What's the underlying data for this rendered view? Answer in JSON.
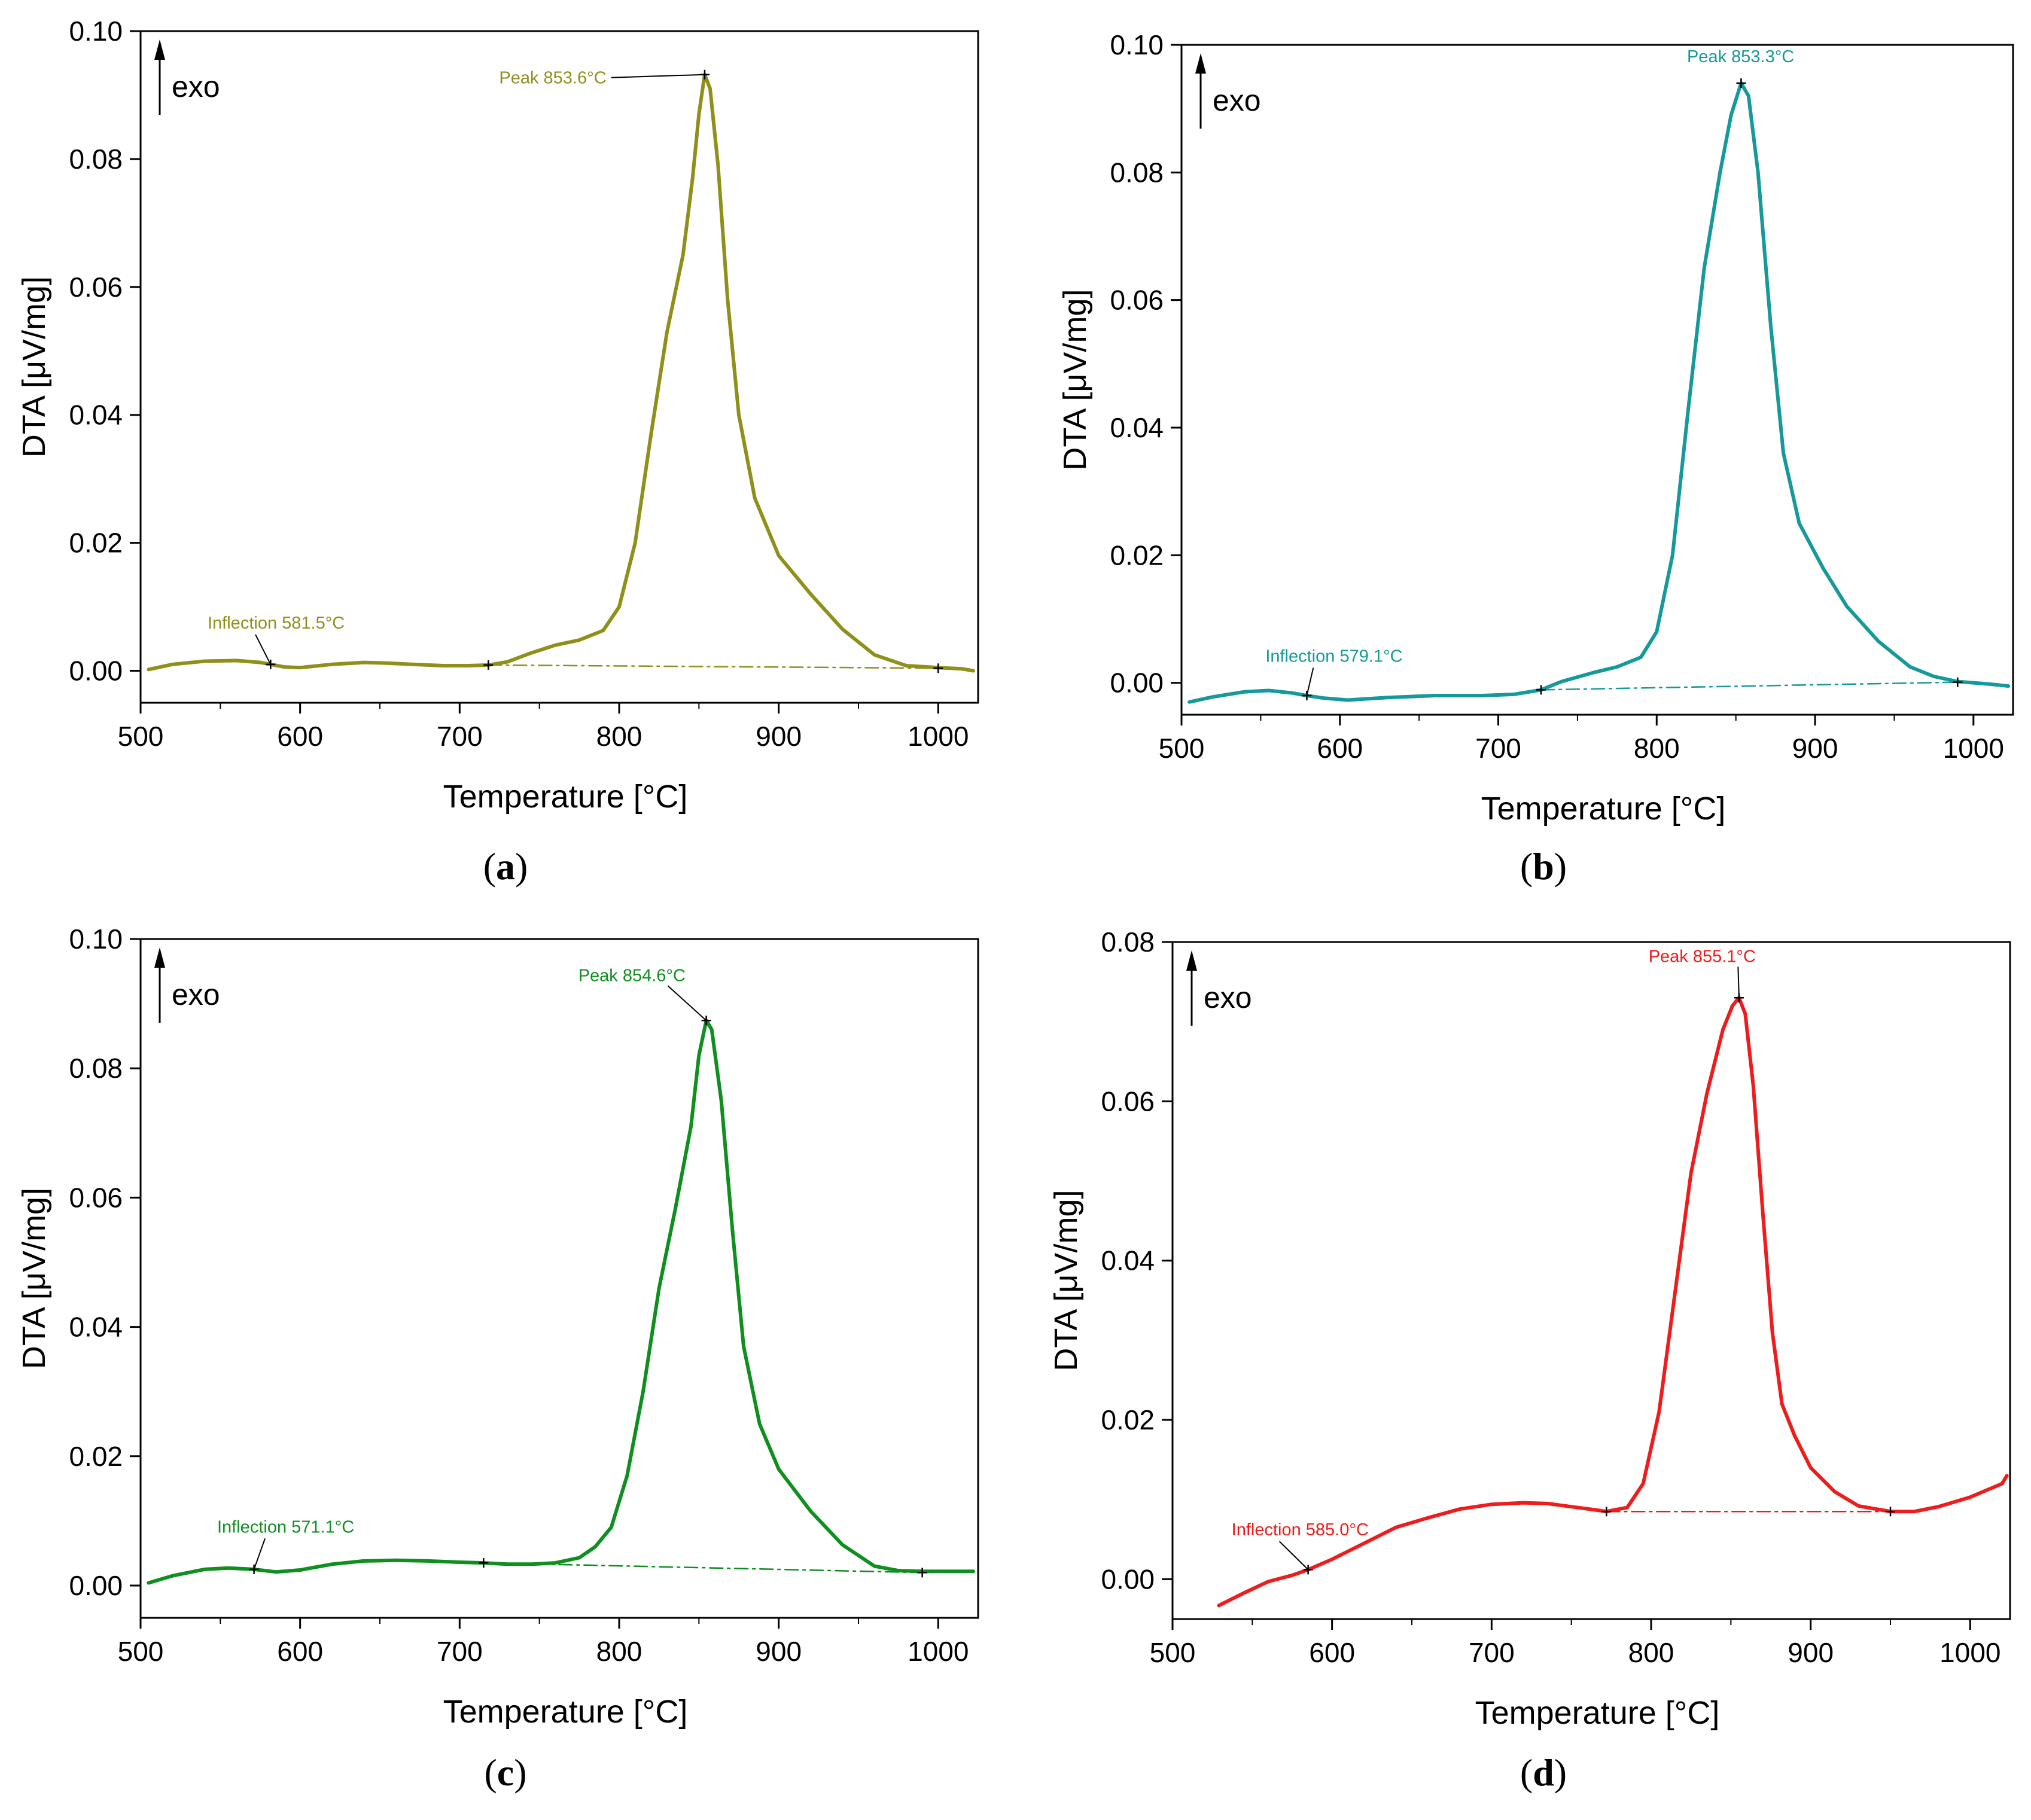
{
  "chart_data": [
    {
      "type": "line",
      "panel_label": "a",
      "color": "#8f8f1a",
      "xlabel": "Temperature [°C]",
      "ylabel": "DTA [μV/mg]",
      "xlim": [
        500,
        1025
      ],
      "ylim": [
        -0.005,
        0.1
      ],
      "xticks": [
        500,
        600,
        700,
        800,
        900,
        1000
      ],
      "yticks": [
        "0.00",
        "0.02",
        "0.04",
        "0.06",
        "0.08",
        "0.10"
      ],
      "exo_label": "exo",
      "series": [
        {
          "name": "DTA",
          "x": [
            505,
            520,
            540,
            560,
            575,
            581.5,
            590,
            600,
            620,
            640,
            655,
            670,
            690,
            705,
            718,
            730,
            745,
            760,
            775,
            790,
            800,
            810,
            820,
            830,
            840,
            846,
            850,
            853.6,
            857,
            862,
            868,
            875,
            885,
            900,
            920,
            940,
            960,
            980,
            1000,
            1015,
            1022
          ],
          "y": [
            0.0002,
            0.001,
            0.0015,
            0.0016,
            0.0013,
            0.001,
            0.0006,
            0.0005,
            0.001,
            0.0013,
            0.0012,
            0.001,
            0.0008,
            0.0008,
            0.0009,
            0.0014,
            0.0028,
            0.004,
            0.0048,
            0.0063,
            0.01,
            0.02,
            0.037,
            0.053,
            0.065,
            0.077,
            0.087,
            0.0932,
            0.091,
            0.079,
            0.058,
            0.04,
            0.027,
            0.018,
            0.012,
            0.0065,
            0.0025,
            0.0008,
            0.0005,
            0.0003,
            0.0
          ]
        },
        {
          "name": "baseline",
          "style": "dash-dot",
          "x": [
            718,
            1000
          ],
          "y": [
            0.0009,
            0.0004
          ]
        }
      ],
      "markers": [
        {
          "x": 581.5,
          "y": 0.001
        },
        {
          "x": 718,
          "y": 0.0009
        },
        {
          "x": 853.6,
          "y": 0.0932
        },
        {
          "x": 1000,
          "y": 0.0004
        }
      ],
      "annotations": [
        {
          "text": "Peak 853.6°C",
          "x": 853.6,
          "y": 0.0932,
          "text_x": 792,
          "text_y": 0.0918,
          "anchor": "end",
          "leader": true
        },
        {
          "text": "Inflection 581.5°C",
          "x": 581.5,
          "y": 0.001,
          "text_x": 542,
          "text_y": 0.0066,
          "anchor": "start",
          "leader": true
        }
      ]
    },
    {
      "type": "line",
      "panel_label": "b",
      "color": "#15999a",
      "xlabel": "Temperature [°C]",
      "ylabel": "DTA [μV/mg]",
      "xlim": [
        500,
        1025
      ],
      "ylim": [
        -0.005,
        0.1
      ],
      "xticks": [
        500,
        600,
        700,
        800,
        900,
        1000
      ],
      "yticks": [
        "0.00",
        "0.02",
        "0.04",
        "0.06",
        "0.08",
        "0.10"
      ],
      "exo_label": "exo",
      "series": [
        {
          "name": "DTA",
          "x": [
            505,
            520,
            540,
            555,
            570,
            579.1,
            590,
            605,
            630,
            660,
            690,
            710,
            727,
            740,
            760,
            775,
            790,
            800,
            810,
            820,
            830,
            840,
            847,
            853.3,
            858,
            864,
            872,
            880,
            890,
            905,
            920,
            940,
            960,
            975,
            990,
            1010,
            1022
          ],
          "y": [
            -0.003,
            -0.0022,
            -0.0014,
            -0.0012,
            -0.0016,
            -0.002,
            -0.0024,
            -0.0027,
            -0.0023,
            -0.002,
            -0.002,
            -0.0018,
            -0.0011,
            0.0002,
            0.0016,
            0.0025,
            0.004,
            0.008,
            0.02,
            0.043,
            0.065,
            0.08,
            0.089,
            0.094,
            0.092,
            0.08,
            0.056,
            0.036,
            0.025,
            0.018,
            0.012,
            0.0065,
            0.0025,
            0.001,
            0.0002,
            -0.0002,
            -0.0005
          ]
        },
        {
          "name": "baseline",
          "style": "dash-dot",
          "x": [
            727,
            990
          ],
          "y": [
            -0.0011,
            0.0001
          ]
        }
      ],
      "markers": [
        {
          "x": 579.1,
          "y": -0.002
        },
        {
          "x": 727,
          "y": -0.0011
        },
        {
          "x": 853.3,
          "y": 0.094
        },
        {
          "x": 990,
          "y": 0.0001
        }
      ],
      "annotations": [
        {
          "text": "Peak 853.3°C",
          "x": 853.3,
          "y": 0.094,
          "text_x": 853,
          "text_y": 0.0973,
          "anchor": "middle",
          "leader": false
        },
        {
          "text": "Inflection 579.1°C",
          "x": 579.1,
          "y": -0.002,
          "text_x": 553,
          "text_y": 0.0033,
          "anchor": "start",
          "leader": true
        }
      ]
    },
    {
      "type": "line",
      "panel_label": "c",
      "color": "#0f8f1f",
      "xlabel": "Temperature [°C]",
      "ylabel": "DTA [μV/mg]",
      "xlim": [
        500,
        1025
      ],
      "ylim": [
        -0.005,
        0.1
      ],
      "xticks": [
        500,
        600,
        700,
        800,
        900,
        1000
      ],
      "yticks": [
        "0.00",
        "0.02",
        "0.04",
        "0.06",
        "0.08",
        "0.10"
      ],
      "exo_label": "exo",
      "series": [
        {
          "name": "DTA",
          "x": [
            505,
            520,
            540,
            555,
            571.1,
            585,
            600,
            620,
            640,
            660,
            680,
            700,
            715,
            730,
            745,
            760,
            775,
            785,
            795,
            805,
            815,
            825,
            835,
            845,
            850,
            854.6,
            858,
            864,
            871,
            878,
            888,
            900,
            920,
            940,
            960,
            975,
            990,
            1005,
            1022
          ],
          "y": [
            0.0004,
            0.0015,
            0.0025,
            0.0027,
            0.0025,
            0.0021,
            0.0024,
            0.0033,
            0.0038,
            0.0039,
            0.0038,
            0.0036,
            0.0035,
            0.0033,
            0.0033,
            0.0035,
            0.0043,
            0.006,
            0.009,
            0.017,
            0.03,
            0.046,
            0.058,
            0.071,
            0.082,
            0.0874,
            0.086,
            0.075,
            0.055,
            0.037,
            0.025,
            0.018,
            0.0115,
            0.0063,
            0.003,
            0.0023,
            0.0022,
            0.0022,
            0.0022
          ]
        },
        {
          "name": "baseline",
          "style": "dash-dot",
          "x": [
            715,
            990
          ],
          "y": [
            0.0035,
            0.002
          ]
        }
      ],
      "markers": [
        {
          "x": 571.1,
          "y": 0.0025
        },
        {
          "x": 715,
          "y": 0.0035
        },
        {
          "x": 854.6,
          "y": 0.0874
        },
        {
          "x": 990,
          "y": 0.002
        }
      ],
      "annotations": [
        {
          "text": "Peak 854.6°C",
          "x": 854.6,
          "y": 0.0874,
          "text_x": 808,
          "text_y": 0.0935,
          "anchor": "middle",
          "leader": true
        },
        {
          "text": "Inflection 571.1°C",
          "x": 571.1,
          "y": 0.0025,
          "text_x": 548,
          "text_y": 0.0082,
          "anchor": "start",
          "leader": true
        }
      ]
    },
    {
      "type": "line",
      "panel_label": "d",
      "color": "#ee1c1c",
      "xlabel": "Temperature [°C]",
      "ylabel": "DTA [μV/mg]",
      "xlim": [
        500,
        1025
      ],
      "ylim": [
        -0.005,
        0.08
      ],
      "xticks": [
        500,
        600,
        700,
        800,
        900,
        1000
      ],
      "yticks": [
        "0.00",
        "0.02",
        "0.04",
        "0.06",
        "0.08"
      ],
      "exo_label": "exo",
      "series": [
        {
          "name": "DTA",
          "x": [
            529,
            545,
            560,
            575,
            585,
            600,
            620,
            640,
            660,
            680,
            700,
            720,
            735,
            750,
            765,
            772,
            785,
            795,
            805,
            815,
            825,
            835,
            845,
            851,
            855.1,
            859,
            864,
            870,
            876,
            882,
            890,
            900,
            915,
            930,
            950,
            965,
            980,
            1000,
            1020,
            1023
          ],
          "y": [
            -0.0033,
            -0.0017,
            -0.0003,
            0.0005,
            0.0012,
            0.0025,
            0.0045,
            0.0065,
            0.0077,
            0.0088,
            0.0094,
            0.0096,
            0.0095,
            0.0091,
            0.0087,
            0.0085,
            0.009,
            0.012,
            0.021,
            0.036,
            0.051,
            0.061,
            0.069,
            0.072,
            0.073,
            0.071,
            0.062,
            0.046,
            0.031,
            0.022,
            0.018,
            0.014,
            0.011,
            0.0092,
            0.0085,
            0.0085,
            0.0091,
            0.0103,
            0.012,
            0.013
          ]
        },
        {
          "name": "baseline",
          "style": "dash-dot",
          "x": [
            772,
            950
          ],
          "y": [
            0.0085,
            0.0085
          ]
        }
      ],
      "markers": [
        {
          "x": 585,
          "y": 0.0012
        },
        {
          "x": 772,
          "y": 0.0085
        },
        {
          "x": 855.1,
          "y": 0.073
        },
        {
          "x": 950,
          "y": 0.0085
        }
      ],
      "annotations": [
        {
          "text": "Peak 855.1°C",
          "x": 855.1,
          "y": 0.073,
          "text_x": 832,
          "text_y": 0.0775,
          "anchor": "middle",
          "leader": true
        },
        {
          "text": "Inflection 585.0°C",
          "x": 585,
          "y": 0.0012,
          "text_x": 537,
          "text_y": 0.0055,
          "anchor": "start",
          "leader": true
        }
      ]
    }
  ]
}
